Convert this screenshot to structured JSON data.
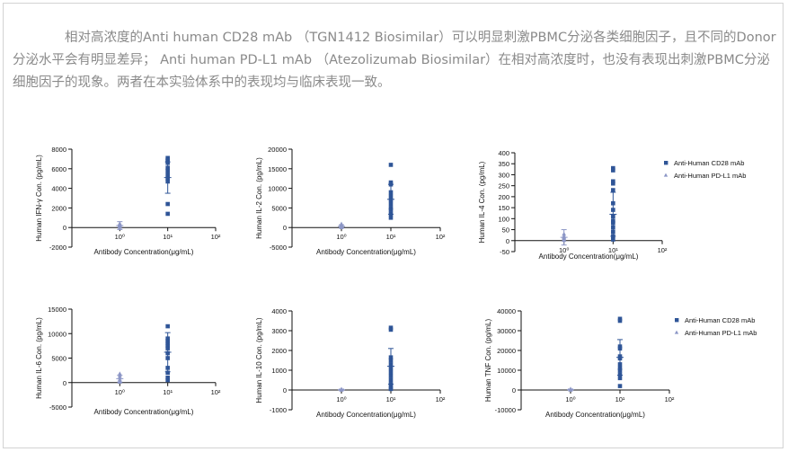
{
  "intro_text": "相对高浓度的Anti human CD28 mAb （TGN1412 Biosimilar）可以明显刺激PBMC分泌各类细胞因子，且不同的Donor分泌水平会有明显差异； Anti human PD-L1 mAb （Atezolizumab Biosimilar）在相对高浓度时，也没有表现出刺激PBMC分泌细胞因子的现象。两者在本实验体系中的表现均与临床表现一致。",
  "colors": {
    "cd28": "#2f5597",
    "pdl1": "#8c96c6",
    "text": "#8a8a8a"
  },
  "legend": [
    "Anti-Human CD28 mAb",
    "Anti-Human PD-L1 mAb"
  ],
  "chart_data": [
    {
      "type": "scatter",
      "ylabel": "Human IFN-γ Con. (pg/mL)",
      "xlabel": "Antibody Concentration(μg/mL)",
      "xscale": "log",
      "xlim": [
        0.1,
        100
      ],
      "xticks": [
        "10⁰",
        "10¹",
        "10²"
      ],
      "ylim": [
        -2000,
        8000
      ],
      "yticks": [
        -2000,
        0,
        2000,
        4000,
        6000,
        8000
      ],
      "series": [
        {
          "name": "Anti-Human CD28 mAb",
          "x": 10,
          "values": [
            7100,
            6900,
            6800,
            6600,
            6100,
            5800,
            5400,
            5000,
            4700,
            2400,
            1400
          ],
          "mean": 5100,
          "sd": 1600
        },
        {
          "name": "Anti-Human PD-L1 mAb",
          "x": 1,
          "values": [
            400,
            300,
            250,
            200,
            150,
            100,
            60,
            30
          ],
          "mean": 200,
          "sd": 400
        }
      ]
    },
    {
      "type": "scatter",
      "ylabel": "Human IL-2 Con. (pg/mL)",
      "xlabel": "Antibody Concentration(μg/mL)",
      "xscale": "log",
      "xlim": [
        0.1,
        100
      ],
      "xticks": [
        "10⁰",
        "10¹",
        "10²"
      ],
      "ylim": [
        -5000,
        20000
      ],
      "yticks": [
        -5000,
        0,
        5000,
        10000,
        15000,
        20000
      ],
      "series": [
        {
          "name": "Anti-Human CD28 mAb",
          "x": 10,
          "values": [
            16000,
            11500,
            11000,
            9000,
            8000,
            7000,
            6000,
            5000,
            4500,
            3500,
            2500
          ],
          "mean": 7200,
          "sd": 3800
        },
        {
          "name": "Anti-Human PD-L1 mAb",
          "x": 1,
          "values": [
            900,
            600,
            400,
            200,
            100,
            50,
            20
          ],
          "mean": 300,
          "sd": 400
        }
      ]
    },
    {
      "type": "scatter",
      "ylabel": "Human IL-4 Con. (pg/mL)",
      "xlabel": "Antibody Concentration(μg/mL)",
      "xscale": "log",
      "xlim": [
        0.1,
        100
      ],
      "xticks": [
        "10⁰",
        "10¹",
        "10²"
      ],
      "ylim": [
        -50,
        400
      ],
      "yticks": [
        -50,
        0,
        50,
        100,
        150,
        200,
        250,
        300,
        350,
        400
      ],
      "legend_shown": true,
      "series": [
        {
          "name": "Anti-Human CD28 mAb",
          "x": 10,
          "values": [
            330,
            320,
            270,
            260,
            230,
            170,
            140,
            110,
            90,
            80,
            60,
            40,
            20,
            5
          ],
          "mean": 120,
          "sd": 100
        },
        {
          "name": "Anti-Human PD-L1 mAb",
          "x": 1,
          "values": [
            30,
            20,
            15,
            10,
            5,
            2
          ],
          "mean": 15,
          "sd": 35
        }
      ]
    },
    {
      "type": "scatter",
      "ylabel": "Human IL-6 Con. (pg/mL)",
      "xlabel": "Antibody Concentration(μg/mL)",
      "xscale": "log",
      "xlim": [
        0.1,
        100
      ],
      "xticks": [
        "10⁰",
        "10¹",
        "10²"
      ],
      "ylim": [
        -5000,
        15000
      ],
      "yticks": [
        -5000,
        0,
        5000,
        10000,
        15000
      ],
      "series": [
        {
          "name": "Anti-Human CD28 mAb",
          "x": 10,
          "values": [
            11500,
            9000,
            8500,
            8000,
            7500,
            7000,
            6000,
            5000,
            3000,
            2000,
            1000,
            500
          ],
          "mean": 6200,
          "sd": 4000
        },
        {
          "name": "Anti-Human PD-L1 mAb",
          "x": 1,
          "values": [
            1800,
            1400,
            1000,
            600,
            300,
            100
          ],
          "mean": 800,
          "sd": 700
        }
      ]
    },
    {
      "type": "scatter",
      "ylabel": "Human IL-10 Con. (pg/mL)",
      "xlabel": "Antibody Concentration(μg/mL)",
      "xscale": "log",
      "xlim": [
        0.1,
        100
      ],
      "xticks": [
        "10⁰",
        "10¹",
        "10²"
      ],
      "ylim": [
        -1000,
        4000
      ],
      "yticks": [
        -1000,
        0,
        1000,
        2000,
        3000,
        4000
      ],
      "series": [
        {
          "name": "Anti-Human CD28 mAb",
          "x": 10,
          "values": [
            3150,
            3050,
            1650,
            1500,
            1300,
            1100,
            900,
            700,
            500,
            300,
            150,
            50
          ],
          "mean": 1200,
          "sd": 900
        },
        {
          "name": "Anti-Human PD-L1 mAb",
          "x": 1,
          "values": [
            40,
            20,
            10,
            0
          ],
          "mean": 15,
          "sd": 30
        }
      ]
    },
    {
      "type": "scatter",
      "ylabel": "Human TNF Con. (pg/mL)",
      "xlabel": "Antibody Concentration(μg/mL)",
      "xscale": "log",
      "xlim": [
        0.1,
        100
      ],
      "xticks": [
        "10⁰",
        "10¹",
        "10²"
      ],
      "ylim": [
        -10000,
        40000
      ],
      "yticks": [
        -10000,
        0,
        10000,
        20000,
        30000,
        40000
      ],
      "legend_shown": true,
      "series": [
        {
          "name": "Anti-Human CD28 mAb",
          "x": 10,
          "values": [
            36000,
            35000,
            22000,
            21000,
            17000,
            16000,
            13000,
            11000,
            10000,
            8000,
            6000,
            2000
          ],
          "mean": 16500,
          "sd": 9000
        },
        {
          "name": "Anti-Human PD-L1 mAb",
          "x": 1,
          "values": [
            500,
            200,
            100,
            0
          ],
          "mean": 200,
          "sd": 300
        }
      ]
    }
  ]
}
